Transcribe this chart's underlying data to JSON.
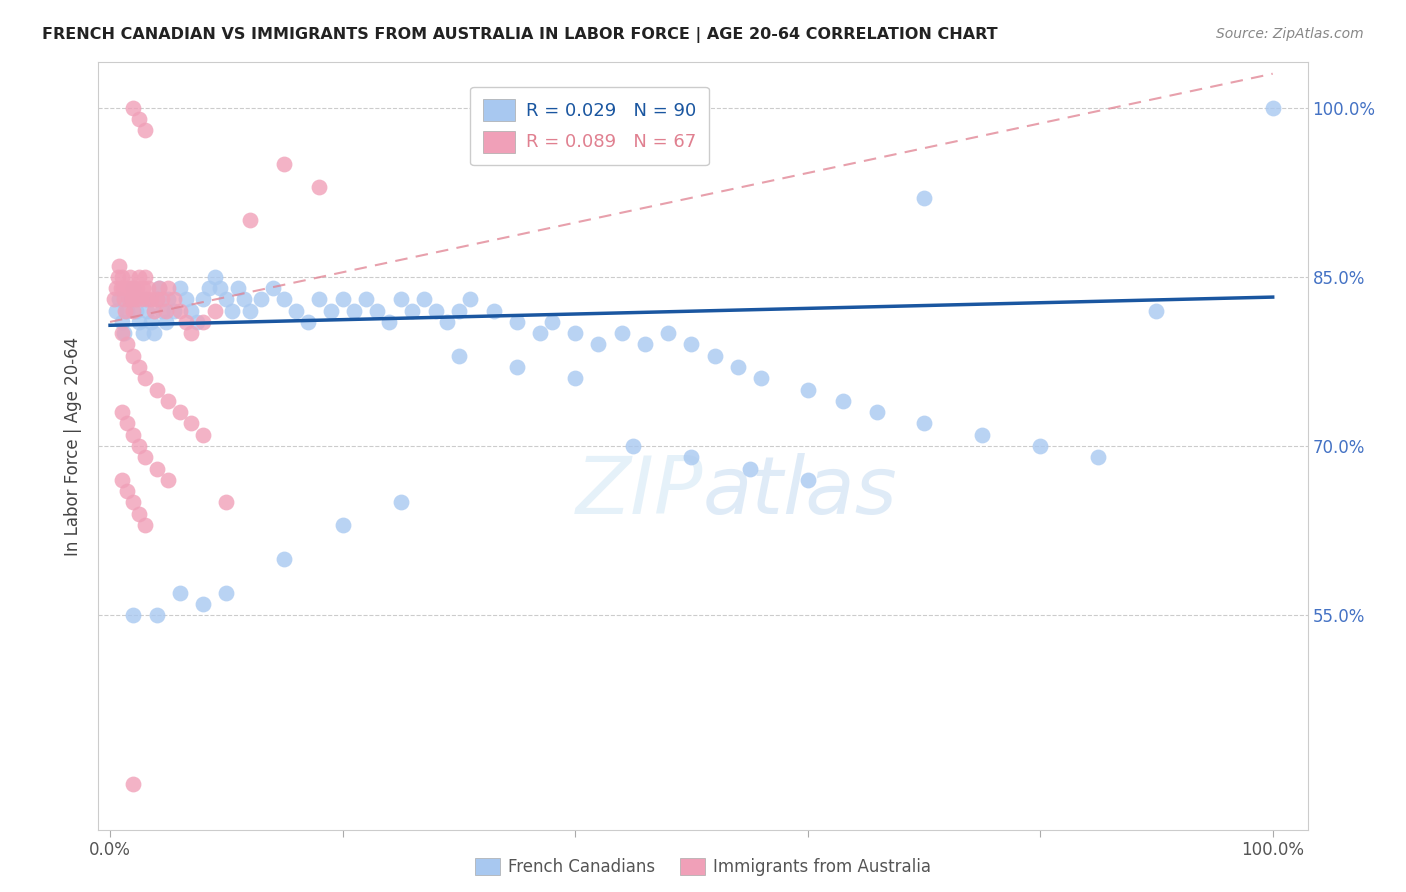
{
  "title": "FRENCH CANADIAN VS IMMIGRANTS FROM AUSTRALIA IN LABOR FORCE | AGE 20-64 CORRELATION CHART",
  "source": "Source: ZipAtlas.com",
  "ylabel": "In Labor Force | Age 20-64",
  "legend_blue_r": "0.029",
  "legend_blue_n": "90",
  "legend_pink_r": "0.089",
  "legend_pink_n": "67",
  "blue_color": "#a8c8f0",
  "pink_color": "#f0a0b8",
  "blue_line_color": "#1a56a0",
  "pink_line_color": "#e08090",
  "ytick_vals": [
    0.55,
    0.7,
    0.85,
    1.0
  ],
  "ytick_labels": [
    "55.0%",
    "70.0%",
    "85.0%",
    "100.0%"
  ],
  "ymin": 0.36,
  "ymax": 1.04,
  "xmin": -0.01,
  "xmax": 1.03,
  "blue_x": [
    0.005,
    0.008,
    0.01,
    0.012,
    0.015,
    0.018,
    0.02,
    0.022,
    0.025,
    0.028,
    0.03,
    0.032,
    0.035,
    0.038,
    0.04,
    0.042,
    0.045,
    0.048,
    0.05,
    0.055,
    0.06,
    0.065,
    0.07,
    0.075,
    0.08,
    0.085,
    0.09,
    0.095,
    0.1,
    0.105,
    0.11,
    0.115,
    0.12,
    0.13,
    0.14,
    0.15,
    0.16,
    0.17,
    0.18,
    0.19,
    0.2,
    0.21,
    0.22,
    0.23,
    0.24,
    0.25,
    0.26,
    0.27,
    0.28,
    0.29,
    0.3,
    0.31,
    0.33,
    0.35,
    0.37,
    0.38,
    0.4,
    0.42,
    0.44,
    0.46,
    0.48,
    0.5,
    0.52,
    0.54,
    0.56,
    0.6,
    0.63,
    0.66,
    0.7,
    0.75,
    0.8,
    0.85,
    0.3,
    0.35,
    0.4,
    0.45,
    0.5,
    0.55,
    0.6,
    0.25,
    0.2,
    0.15,
    0.1,
    0.08,
    0.06,
    0.04,
    0.02,
    1.0,
    0.9,
    0.7
  ],
  "blue_y": [
    0.82,
    0.83,
    0.81,
    0.8,
    0.82,
    0.83,
    0.84,
    0.82,
    0.81,
    0.8,
    0.83,
    0.82,
    0.81,
    0.8,
    0.83,
    0.84,
    0.82,
    0.81,
    0.83,
    0.82,
    0.84,
    0.83,
    0.82,
    0.81,
    0.83,
    0.84,
    0.85,
    0.84,
    0.83,
    0.82,
    0.84,
    0.83,
    0.82,
    0.83,
    0.84,
    0.83,
    0.82,
    0.81,
    0.83,
    0.82,
    0.83,
    0.82,
    0.83,
    0.82,
    0.81,
    0.83,
    0.82,
    0.83,
    0.82,
    0.81,
    0.82,
    0.83,
    0.82,
    0.81,
    0.8,
    0.81,
    0.8,
    0.79,
    0.8,
    0.79,
    0.8,
    0.79,
    0.78,
    0.77,
    0.76,
    0.75,
    0.74,
    0.73,
    0.72,
    0.71,
    0.7,
    0.69,
    0.78,
    0.77,
    0.76,
    0.7,
    0.69,
    0.68,
    0.67,
    0.65,
    0.63,
    0.6,
    0.57,
    0.56,
    0.57,
    0.55,
    0.55,
    1.0,
    0.82,
    0.92
  ],
  "pink_x": [
    0.003,
    0.005,
    0.007,
    0.008,
    0.009,
    0.01,
    0.011,
    0.012,
    0.013,
    0.015,
    0.016,
    0.017,
    0.018,
    0.019,
    0.02,
    0.021,
    0.022,
    0.023,
    0.025,
    0.027,
    0.028,
    0.03,
    0.032,
    0.033,
    0.035,
    0.038,
    0.04,
    0.042,
    0.045,
    0.048,
    0.05,
    0.055,
    0.06,
    0.065,
    0.07,
    0.08,
    0.09,
    0.01,
    0.015,
    0.02,
    0.025,
    0.03,
    0.04,
    0.05,
    0.06,
    0.07,
    0.08,
    0.01,
    0.015,
    0.02,
    0.025,
    0.03,
    0.04,
    0.05,
    0.01,
    0.015,
    0.02,
    0.025,
    0.03,
    0.1,
    0.12,
    0.15,
    0.18,
    0.02,
    0.025,
    0.03,
    0.02
  ],
  "pink_y": [
    0.83,
    0.84,
    0.85,
    0.86,
    0.84,
    0.85,
    0.84,
    0.83,
    0.82,
    0.84,
    0.83,
    0.85,
    0.84,
    0.83,
    0.82,
    0.84,
    0.83,
    0.84,
    0.85,
    0.83,
    0.84,
    0.85,
    0.83,
    0.84,
    0.83,
    0.82,
    0.83,
    0.84,
    0.83,
    0.82,
    0.84,
    0.83,
    0.82,
    0.81,
    0.8,
    0.81,
    0.82,
    0.8,
    0.79,
    0.78,
    0.77,
    0.76,
    0.75,
    0.74,
    0.73,
    0.72,
    0.71,
    0.73,
    0.72,
    0.71,
    0.7,
    0.69,
    0.68,
    0.67,
    0.67,
    0.66,
    0.65,
    0.64,
    0.63,
    0.65,
    0.9,
    0.95,
    0.93,
    1.0,
    0.99,
    0.98,
    0.4
  ]
}
